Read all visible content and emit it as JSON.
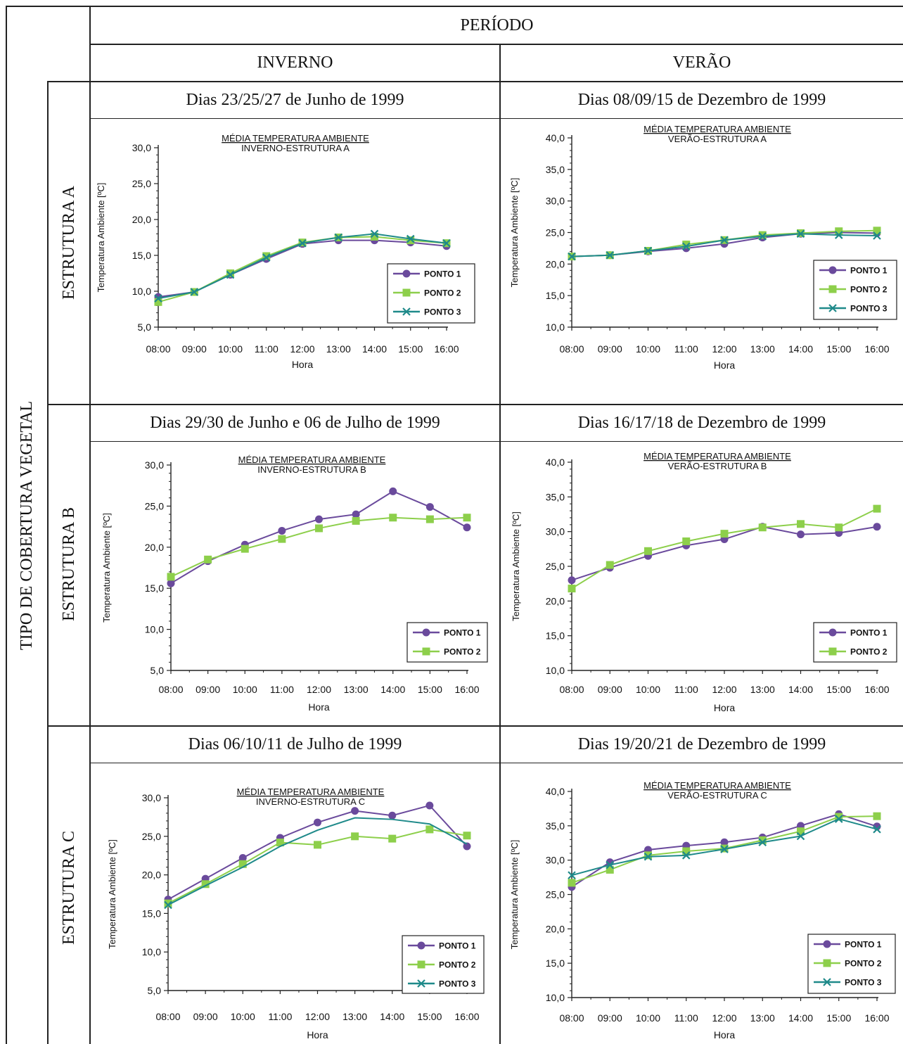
{
  "headers": {
    "periodo": "PERÍODO",
    "inverno": "INVERNO",
    "verao": "VERÃO",
    "tipo_cobertura": "TIPO DE COBERTURA VEGETAL"
  },
  "rows": [
    {
      "label": "ESTRUTURA A",
      "inverno_dates": "Dias 23/25/27 de Junho de 1999",
      "verao_dates": "Dias 08/09/15 de Dezembro de 1999"
    },
    {
      "label": "ESTRUTURA B",
      "inverno_dates": "Dias 29/30 de Junho e 06 de Julho de 1999",
      "verao_dates": "Dias 16/17/18 de Dezembro de 1999"
    },
    {
      "label": "ESTRUTURA C",
      "inverno_dates": "Dias 06/10/11 de Julho de 1999",
      "verao_dates": "Dias 19/20/21 de Dezembro de 1999"
    }
  ],
  "colors": {
    "ponto1": "#6a4a9c",
    "ponto2": "#8dcf4b",
    "ponto3": "#1f8a8a"
  },
  "chart_data": [
    {
      "type": "line",
      "title": "MÉDIA TEMPERATURA AMBIENTE",
      "subtitle": "INVERNO-ESTRUTURA A",
      "xlabel": "Hora",
      "ylabel": "Temperatura Ambiente [ºC]",
      "categories": [
        "08:00",
        "09:00",
        "10:00",
        "11:00",
        "12:00",
        "13:00",
        "14:00",
        "15:00",
        "16:00"
      ],
      "ylim": [
        5,
        30
      ],
      "yticks": [
        "5,0",
        "10,0",
        "15,0",
        "20,0",
        "25,0",
        "30,0"
      ],
      "legend": "bottom-right",
      "series": [
        {
          "name": "PONTO 1",
          "values": [
            9.2,
            9.9,
            12.3,
            14.5,
            16.6,
            17.1,
            17.1,
            16.8,
            16.3
          ]
        },
        {
          "name": "PONTO 2",
          "values": [
            8.5,
            9.9,
            12.5,
            14.9,
            16.8,
            17.5,
            17.6,
            17.1,
            16.7
          ]
        },
        {
          "name": "PONTO 3",
          "values": [
            9.0,
            9.9,
            12.3,
            14.7,
            16.7,
            17.5,
            18.0,
            17.3,
            16.7
          ]
        }
      ]
    },
    {
      "type": "line",
      "title": "MÉDIA TEMPERATURA AMBIENTE",
      "subtitle": "VERÃO-ESTRUTURA A",
      "xlabel": "Hora",
      "ylabel": "Temperatura Ambiente [ºC]",
      "categories": [
        "08:00",
        "09:00",
        "10:00",
        "11:00",
        "12:00",
        "13:00",
        "14:00",
        "15:00",
        "16:00"
      ],
      "ylim": [
        10,
        40
      ],
      "yticks": [
        "10,0",
        "15,0",
        "20,0",
        "25,0",
        "30,0",
        "35,0",
        "40,0"
      ],
      "legend": "bottom-right",
      "series": [
        {
          "name": "PONTO 1",
          "values": [
            21.2,
            21.4,
            22.0,
            22.5,
            23.2,
            24.2,
            24.8,
            25.0,
            24.9
          ]
        },
        {
          "name": "PONTO 2",
          "values": [
            21.2,
            21.4,
            22.1,
            23.1,
            23.8,
            24.6,
            24.9,
            25.2,
            25.3
          ]
        },
        {
          "name": "PONTO 3",
          "values": [
            21.2,
            21.4,
            22.1,
            22.8,
            23.8,
            24.4,
            24.8,
            24.6,
            24.5
          ]
        }
      ]
    },
    {
      "type": "line",
      "title": "MÉDIA TEMPERATURA AMBIENTE",
      "subtitle": "INVERNO-ESTRUTURA B",
      "xlabel": "Hora",
      "ylabel": "Temperatura Ambiente [ºC]",
      "categories": [
        "08:00",
        "09:00",
        "10:00",
        "11:00",
        "12:00",
        "13:00",
        "14:00",
        "15:00",
        "16:00"
      ],
      "ylim": [
        5,
        30
      ],
      "yticks": [
        "5,0",
        "10,0",
        "15,0",
        "20,0",
        "25,0",
        "30,0"
      ],
      "legend": "bottom-right",
      "series": [
        {
          "name": "PONTO 1",
          "values": [
            15.6,
            18.3,
            20.3,
            22.0,
            23.4,
            24.0,
            26.8,
            24.9,
            22.4
          ]
        },
        {
          "name": "PONTO 2",
          "values": [
            16.4,
            18.5,
            19.8,
            21.0,
            22.3,
            23.2,
            23.6,
            23.4,
            23.6
          ]
        }
      ]
    },
    {
      "type": "line",
      "title": "MÉDIA TEMPERATURA AMBIENTE",
      "subtitle": "VERÃO-ESTRUTURA B",
      "xlabel": "Hora",
      "ylabel": "Temperatura Ambiente [ºC]",
      "categories": [
        "08:00",
        "09:00",
        "10:00",
        "11:00",
        "12:00",
        "13:00",
        "14:00",
        "15:00",
        "16:00"
      ],
      "ylim": [
        10,
        40
      ],
      "yticks": [
        "10,0",
        "15,0",
        "20,0",
        "25,0",
        "30,0",
        "35,0",
        "40,0"
      ],
      "legend": "bottom-right",
      "series": [
        {
          "name": "PONTO 1",
          "values": [
            23.0,
            24.8,
            26.5,
            28.0,
            28.9,
            30.7,
            29.6,
            29.8,
            30.7
          ]
        },
        {
          "name": "PONTO 2",
          "values": [
            21.8,
            25.2,
            27.2,
            28.6,
            29.7,
            30.6,
            31.1,
            30.6,
            33.3
          ]
        }
      ]
    },
    {
      "type": "line",
      "title": "MÉDIA TEMPERATURA AMBIENTE",
      "subtitle": "INVERNO-ESTRUTURA C",
      "xlabel": "Hora",
      "ylabel": "Temperatura Ambiente [ºC]",
      "categories": [
        "08:00",
        "09:00",
        "10:00",
        "11:00",
        "12:00",
        "13:00",
        "14:00",
        "15:00",
        "16:00"
      ],
      "ylim": [
        5,
        30
      ],
      "yticks": [
        "5,0",
        "10,0",
        "15,0",
        "20,0",
        "25,0",
        "30,0"
      ],
      "legend": "bottom-right",
      "series": [
        {
          "name": "PONTO 1",
          "values": [
            16.8,
            19.5,
            22.2,
            24.8,
            26.8,
            28.3,
            27.7,
            29.0,
            23.7
          ]
        },
        {
          "name": "PONTO 2",
          "values": [
            16.3,
            18.8,
            21.4,
            24.2,
            23.9,
            25.0,
            24.7,
            25.9,
            25.1
          ]
        },
        {
          "name": "PONTO 3",
          "values": [
            16.1,
            18.6,
            21.0,
            23.7,
            25.8,
            27.4,
            27.2,
            26.6,
            24.0
          ]
        }
      ]
    },
    {
      "type": "line",
      "title": "MÉDIA TEMPERATURA AMBIENTE",
      "subtitle": "VERÃO-ESTRUTURA C",
      "xlabel": "Hora",
      "ylabel": "Temperatura Ambiente [ºC]",
      "categories": [
        "08:00",
        "09:00",
        "10:00",
        "11:00",
        "12:00",
        "13:00",
        "14:00",
        "15:00",
        "16:00"
      ],
      "ylim": [
        10,
        40
      ],
      "yticks": [
        "10,0",
        "15,0",
        "20,0",
        "25,0",
        "30,0",
        "35,0",
        "40,0"
      ],
      "legend": "bottom-right",
      "series": [
        {
          "name": "PONTO 1",
          "values": [
            26.1,
            29.7,
            31.5,
            32.1,
            32.6,
            33.3,
            35.0,
            36.7,
            34.9
          ]
        },
        {
          "name": "PONTO 2",
          "values": [
            26.7,
            28.6,
            30.7,
            31.3,
            31.7,
            32.9,
            34.2,
            36.3,
            36.4
          ]
        },
        {
          "name": "PONTO 3",
          "values": [
            27.8,
            29.3,
            30.5,
            30.7,
            31.6,
            32.6,
            33.5,
            36.0,
            34.5
          ]
        }
      ]
    }
  ]
}
